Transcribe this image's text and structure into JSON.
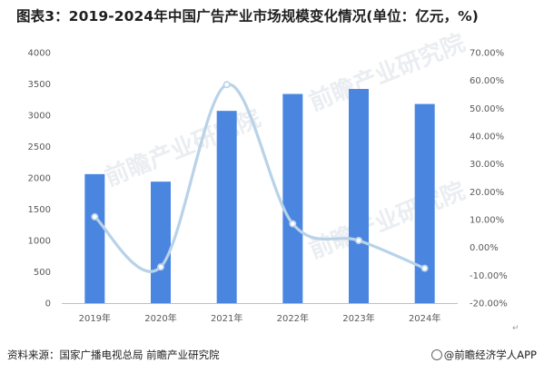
{
  "title": "图表3：2019-2024年中国广告产业市场规模变化情况(单位：亿元，%)",
  "watermark": "前瞻产业研究院",
  "footer": {
    "source": "资料来源：国家广播电视总局 前瞻产业研究院",
    "brand": "@前瞻经济学人APP"
  },
  "return_mark": "↵",
  "chart_data": {
    "type": "bar",
    "categories": [
      "2019年",
      "2020年",
      "2021年",
      "2022年",
      "2023年",
      "2024年"
    ],
    "series": [
      {
        "type": "bar",
        "values": [
          2060,
          1940,
          3070,
          3340,
          3420,
          3180
        ],
        "color": "#4a86e0"
      },
      {
        "type": "line",
        "axis": "right",
        "values": [
          11.0,
          -7.0,
          58.5,
          8.5,
          2.5,
          -7.5
        ],
        "color": "#b8d2e8"
      }
    ],
    "y_left": {
      "min": 0,
      "max": 4000,
      "step": 500,
      "ticks": [
        "0",
        "500",
        "1000",
        "1500",
        "2000",
        "2500",
        "3000",
        "3500",
        "4000"
      ]
    },
    "y_right": {
      "min": -20,
      "max": 70,
      "step": 10,
      "ticks": [
        "-20.00%",
        "-10.00%",
        "0.00%",
        "10.00%",
        "20.00%",
        "30.00%",
        "40.00%",
        "50.00%",
        "60.00%",
        "70.00%"
      ]
    },
    "grid": false,
    "legend": "none"
  }
}
